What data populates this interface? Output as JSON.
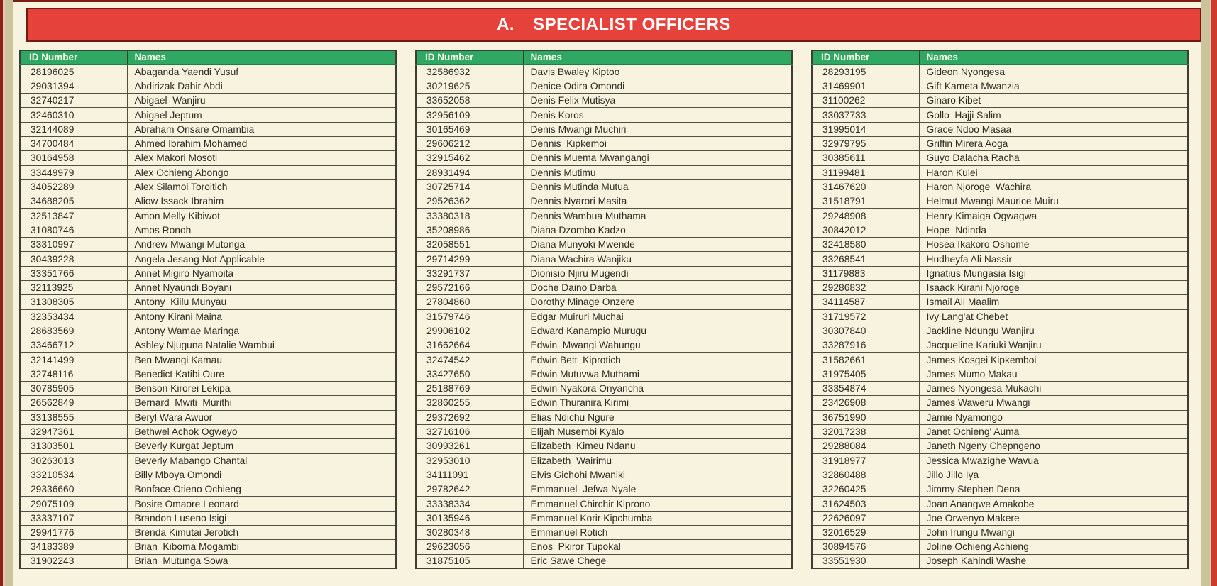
{
  "page": {
    "title_prefix": "A.",
    "title": "SPECIALIST OFFICERS"
  },
  "columns_header": {
    "id": "ID Number",
    "names": "Names"
  },
  "colors": {
    "banner_red": "#E6423C",
    "banner_border": "#701A10",
    "header_green": "#2EA863",
    "page_cream": "#F8F3DF",
    "edge_maroon": "#8E2016",
    "edge_olive": "#C9C49C",
    "text": "#2E2D26"
  },
  "tables": [
    {
      "rows": [
        [
          "28196025",
          "Abaganda Yaendi Yusuf"
        ],
        [
          "29031394",
          "Abdirizak Dahir Abdi"
        ],
        [
          "32740217",
          "Abigael  Wanjiru"
        ],
        [
          "32460310",
          "Abigael Jeptum"
        ],
        [
          "32144089",
          "Abraham Onsare Omambia"
        ],
        [
          "34700484",
          "Ahmed Ibrahim Mohamed"
        ],
        [
          "30164958",
          "Alex Makori Mosoti"
        ],
        [
          "33449979",
          "Alex Ochieng Abongo"
        ],
        [
          "34052289",
          "Alex Silamoi Toroitich"
        ],
        [
          "34688205",
          "Aliow Issack Ibrahim"
        ],
        [
          "32513847",
          "Amon Melly Kibiwot"
        ],
        [
          "31080746",
          "Amos Ronoh"
        ],
        [
          "33310997",
          "Andrew Mwangi Mutonga"
        ],
        [
          "30439228",
          "Angela Jesang Not Applicable"
        ],
        [
          "33351766",
          "Annet Migiro Nyamoita"
        ],
        [
          "32113925",
          "Annet Nyaundi Boyani"
        ],
        [
          "31308305",
          "Antony  Kiilu Munyau"
        ],
        [
          "32353434",
          "Antony Kirani Maina"
        ],
        [
          "28683569",
          "Antony Wamae Maringa"
        ],
        [
          "33466712",
          "Ashley Njuguna Natalie Wambui"
        ],
        [
          "32141499",
          "Ben Mwangi Kamau"
        ],
        [
          "32748116",
          "Benedict Katibi Oure"
        ],
        [
          "30785905",
          "Benson Kirorei Lekipa"
        ],
        [
          "26562849",
          "Bernard  Mwiti  Murithi"
        ],
        [
          "33138555",
          "Beryl Wara Awuor"
        ],
        [
          "32947361",
          "Bethwel Achok Ogweyo"
        ],
        [
          "31303501",
          "Beverly Kurgat Jeptum"
        ],
        [
          "30263013",
          "Beverly Mabango Chantal"
        ],
        [
          "33210534",
          "Billy Mboya Omondi"
        ],
        [
          "29336660",
          "Bonface Otieno Ochieng"
        ],
        [
          "29075109",
          "Bosire Omaore Leonard"
        ],
        [
          "33337107",
          "Brandon Luseno Isigi"
        ],
        [
          "29941776",
          "Brenda Kimutai Jerotich"
        ],
        [
          "34183389",
          "Brian  Kiboma Mogambi"
        ]
      ],
      "partial_row": [
        "31902243",
        "Brian  Mutunga Sowa"
      ]
    },
    {
      "rows": [
        [
          "32586932",
          "Davis Bwaley Kiptoo"
        ],
        [
          "30219625",
          "Denice Odira Omondi"
        ],
        [
          "33652058",
          "Denis Felix Mutisya"
        ],
        [
          "32956109",
          "Denis Koros"
        ],
        [
          "30165469",
          "Denis Mwangi Muchiri"
        ],
        [
          "29606212",
          "Dennis  Kipkemoi"
        ],
        [
          "32915462",
          "Dennis Muema Mwangangi"
        ],
        [
          "28931494",
          "Dennis Mutimu"
        ],
        [
          "30725714",
          "Dennis Mutinda Mutua"
        ],
        [
          "29526362",
          "Dennis Nyarori Masita"
        ],
        [
          "33380318",
          "Dennis Wambua Muthama"
        ],
        [
          "35208986",
          "Diana Dzombo Kadzo"
        ],
        [
          "32058551",
          "Diana Munyoki Mwende"
        ],
        [
          "29714299",
          "Diana Wachira Wanjiku"
        ],
        [
          "33291737",
          "Dionisio Njiru Mugendi"
        ],
        [
          "29572166",
          "Doche Daino Darba"
        ],
        [
          "27804860",
          "Dorothy Minage Onzere"
        ],
        [
          "31579746",
          "Edgar Muiruri Muchai"
        ],
        [
          "29906102",
          "Edward Kanampio Murugu"
        ],
        [
          "31662664",
          "Edwin  Mwangi Wahungu"
        ],
        [
          "32474542",
          "Edwin Bett  Kiprotich"
        ],
        [
          "33427650",
          "Edwin Mutuvwa Muthami"
        ],
        [
          "25188769",
          "Edwin Nyakora Onyancha"
        ],
        [
          "32860255",
          "Edwin Thuranira Kirimi"
        ],
        [
          "29372692",
          "Elias Ndichu Ngure"
        ],
        [
          "32716106",
          "Elijah Musembi Kyalo"
        ],
        [
          "30993261",
          "Elizabeth  Kimeu Ndanu"
        ],
        [
          "32953010",
          "Elizabeth  Wairimu"
        ],
        [
          "34111091",
          "Elvis Gichohi Mwaniki"
        ],
        [
          "29782642",
          "Emmanuel  Jefwa Nyale"
        ],
        [
          "33338334",
          "Emmanuel Chirchir Kiprono"
        ],
        [
          "30135946",
          "Emmanuel Korir Kipchumba"
        ],
        [
          "30280348",
          "Emmanuel Rotich"
        ],
        [
          "29623056",
          "Enos  Pkiror Tupokal"
        ]
      ],
      "partial_row": [
        "31875105",
        "Eric Sawe Chege"
      ]
    },
    {
      "rows": [
        [
          "28293195",
          "Gideon Nyongesa"
        ],
        [
          "31469901",
          "Gift Kameta Mwanzia"
        ],
        [
          "31100262",
          "Ginaro Kibet"
        ],
        [
          "33037733",
          "Gollo  Hajji Salim"
        ],
        [
          "31995014",
          "Grace Ndoo Masaa"
        ],
        [
          "32979795",
          "Griffin Mirera Aoga"
        ],
        [
          "30385611",
          "Guyo Dalacha Racha"
        ],
        [
          "31199481",
          "Haron Kulei"
        ],
        [
          "31467620",
          "Haron Njoroge  Wachira"
        ],
        [
          "31518791",
          "Helmut Mwangi Maurice Muiru"
        ],
        [
          "29248908",
          "Henry Kimaiga Ogwagwa"
        ],
        [
          "30842012",
          "Hope  Ndinda"
        ],
        [
          "32418580",
          "Hosea Ikakoro Oshome"
        ],
        [
          "33268541",
          "Hudheyfa Ali Nassir"
        ],
        [
          "31179883",
          "Ignatius Mungasia Isigi"
        ],
        [
          "29286832",
          "Isaack Kirani Njoroge"
        ],
        [
          "34114587",
          "Ismail Ali Maalim"
        ],
        [
          "31719572",
          "Ivy Lang'at Chebet"
        ],
        [
          "30307840",
          "Jackline Ndungu Wanjiru"
        ],
        [
          "33287916",
          "Jacqueline Kariuki Wanjiru"
        ],
        [
          "31582661",
          "James Kosgei Kipkemboi"
        ],
        [
          "31975405",
          "James Mumo Makau"
        ],
        [
          "33354874",
          "James Nyongesa Mukachi"
        ],
        [
          "23426908",
          "James Waweru Mwangi"
        ],
        [
          "36751990",
          "Jamie Nyamongo"
        ],
        [
          "32017238",
          "Janet Ochieng' Auma"
        ],
        [
          "29288084",
          "Janeth Ngeny Chepngeno"
        ],
        [
          "31918977",
          "Jessica Mwazighe Wavua"
        ],
        [
          "32860488",
          "Jillo Jillo Iya"
        ],
        [
          "32260425",
          "Jimmy Stephen Dena"
        ],
        [
          "31624503",
          "Joan Anangwe Amakobe"
        ],
        [
          "22626097",
          "Joe Orwenyo Makere"
        ],
        [
          "32016529",
          "John Irungu Mwangi"
        ],
        [
          "30894576",
          "Joline Ochieng Achieng"
        ]
      ],
      "partial_row": [
        "33551930",
        "Joseph Kahindi Washe"
      ]
    }
  ]
}
